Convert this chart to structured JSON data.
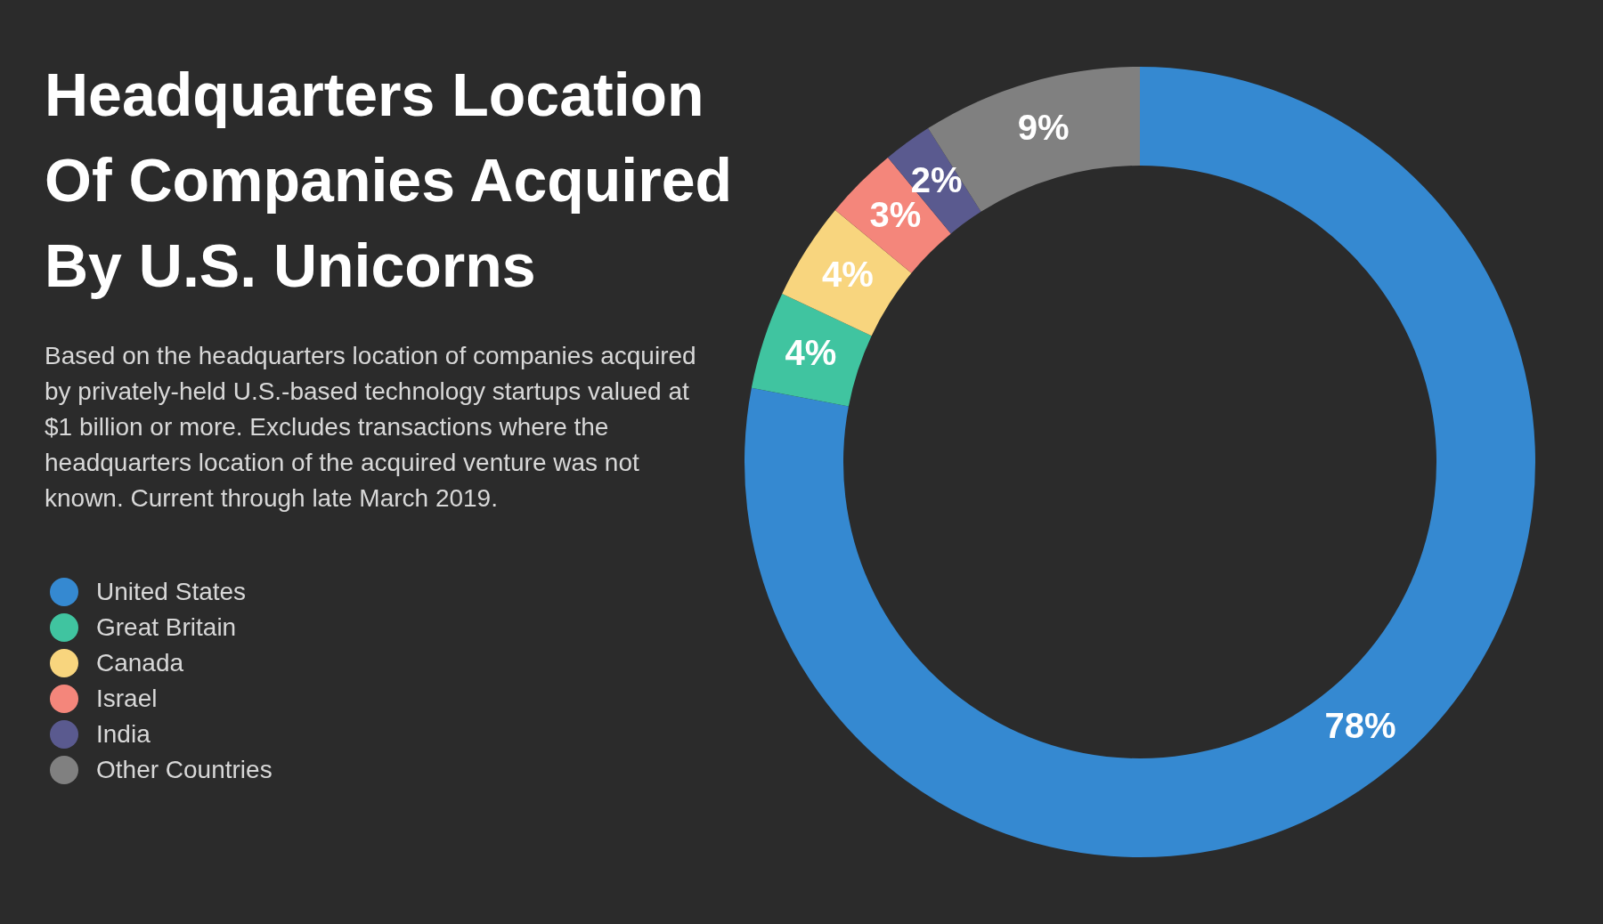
{
  "chart_data": {
    "type": "donut",
    "title": "Headquarters Location Of Companies Acquired By U.S. Unicorns",
    "subtitle": "Based on the headquarters location of companies acquired by privately-held U.S.-based technology startups valued at $1 billion or more. Excludes transactions where the headquarters location of the acquired venture was not known. Current through late March 2019.",
    "categories": [
      "United States",
      "Great Britain",
      "Canada",
      "Israel",
      "India",
      "Other Countries"
    ],
    "values": [
      78,
      4,
      4,
      3,
      2,
      9
    ],
    "colors": [
      "#3589d1",
      "#40c4a0",
      "#f8d57e",
      "#f4867b",
      "#5a5a8f",
      "#808080"
    ],
    "value_labels": [
      "78%",
      "4%",
      "4%",
      "3%",
      "2%",
      "9%"
    ],
    "legend": "left"
  }
}
